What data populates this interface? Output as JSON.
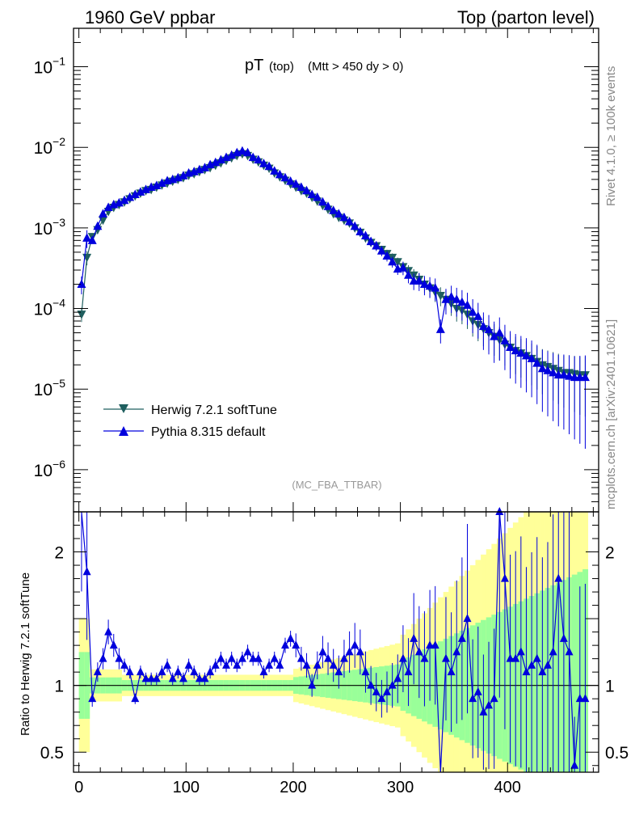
{
  "header": {
    "left_title": "1960 GeV ppbar",
    "right_title": "Top (parton level)"
  },
  "plot": {
    "title_main": "pT",
    "title_sub": "(top)",
    "title_cut": "(Mtt > 450 dy > 0)",
    "watermark": "(MC_FBA_TTBAR)"
  },
  "side": {
    "rivet": "Rivet 4.1.0, ≥ 100k events",
    "mcplots": "mcplots.cern.ch [arXiv:2401.10621]"
  },
  "ratio": {
    "ylabel": "Ratio to Herwig 7.2.1 softTune"
  },
  "colors": {
    "herwig": "#1f5f5f",
    "pythia": "#0000dd",
    "band_outer": "#ffff99",
    "band_inner": "#99ff99"
  },
  "chart_data": {
    "type": "line",
    "x": [
      2.5,
      7.5,
      12.5,
      17.5,
      22.5,
      27.5,
      32.5,
      37.5,
      42.5,
      47.5,
      52.5,
      57.5,
      62.5,
      67.5,
      72.5,
      77.5,
      82.5,
      87.5,
      92.5,
      97.5,
      102.5,
      107.5,
      112.5,
      117.5,
      122.5,
      127.5,
      132.5,
      137.5,
      142.5,
      147.5,
      152.5,
      157.5,
      162.5,
      167.5,
      172.5,
      177.5,
      182.5,
      187.5,
      192.5,
      197.5,
      202.5,
      207.5,
      212.5,
      217.5,
      222.5,
      227.5,
      232.5,
      237.5,
      242.5,
      247.5,
      252.5,
      257.5,
      262.5,
      267.5,
      272.5,
      277.5,
      282.5,
      287.5,
      292.5,
      297.5,
      302.5,
      307.5,
      312.5,
      317.5,
      322.5,
      327.5,
      332.5,
      337.5,
      342.5,
      347.5,
      352.5,
      357.5,
      362.5,
      367.5,
      372.5,
      377.5,
      382.5,
      387.5,
      392.5,
      397.5,
      402.5,
      407.5,
      412.5,
      417.5,
      422.5,
      427.5,
      432.5,
      437.5,
      442.5,
      447.5,
      452.5,
      457.5,
      462.5,
      467.5,
      472.5
    ],
    "series": [
      {
        "name": "Herwig 7.2.1 softTune",
        "values": [
          8.5e-05,
          0.00043,
          0.00078,
          0.00095,
          0.00125,
          0.0016,
          0.0018,
          0.00195,
          0.0021,
          0.0023,
          0.0025,
          0.0027,
          0.0029,
          0.003,
          0.0032,
          0.0034,
          0.0036,
          0.0038,
          0.004,
          0.0042,
          0.0045,
          0.0047,
          0.005,
          0.0053,
          0.0056,
          0.006,
          0.0064,
          0.0069,
          0.0074,
          0.0079,
          0.0083,
          0.0079,
          0.0071,
          0.0066,
          0.006,
          0.0055,
          0.0048,
          0.0043,
          0.0039,
          0.0035,
          0.0032,
          0.0029,
          0.0027,
          0.0024,
          0.00215,
          0.0019,
          0.0017,
          0.0015,
          0.00135,
          0.00125,
          0.00115,
          0.001,
          0.00088,
          0.00075,
          0.00066,
          0.0006,
          0.00054,
          0.00048,
          0.00043,
          0.00038,
          0.00033,
          0.000295,
          0.00026,
          0.00023,
          0.0002,
          0.00018,
          0.00016,
          0.000145,
          0.00013,
          0.000115,
          0.0001,
          9.5e-05,
          8.5e-05,
          7e-05,
          6.3e-05,
          5.6e-05,
          5e-05,
          4.5e-05,
          4.1e-05,
          3.6e-05,
          3.3e-05,
          3e-05,
          2.8e-05,
          2.6e-05,
          2.4e-05,
          2.2e-05,
          2e-05,
          1.9e-05,
          1.8e-05,
          1.7e-05,
          1.6e-05,
          1.6e-05,
          1.55e-05,
          1.5e-05,
          1.5e-05
        ]
      },
      {
        "name": "Pythia 8.315 default",
        "values": [
          0.0002,
          0.00075,
          0.0007,
          0.00105,
          0.0015,
          0.0018,
          0.00195,
          0.00205,
          0.0022,
          0.0024,
          0.0026,
          0.0028,
          0.003,
          0.0032,
          0.00335,
          0.0036,
          0.00385,
          0.004,
          0.0042,
          0.00445,
          0.0048,
          0.005,
          0.0053,
          0.0056,
          0.0061,
          0.0065,
          0.007,
          0.0075,
          0.008,
          0.0086,
          0.009,
          0.0086,
          0.0075,
          0.007,
          0.0063,
          0.0058,
          0.0051,
          0.0046,
          0.0042,
          0.0038,
          0.0035,
          0.0032,
          0.0029,
          0.0026,
          0.0024,
          0.0021,
          0.00185,
          0.00165,
          0.0015,
          0.00135,
          0.0012,
          0.00105,
          0.0009,
          0.0008,
          0.00068,
          0.0006,
          0.00052,
          0.00045,
          0.00038,
          0.00031,
          0.00032,
          0.00026,
          0.00022,
          0.00022,
          0.0002,
          0.00019,
          0.00018,
          5.5e-05,
          0.00013,
          0.00014,
          0.00013,
          0.00012,
          0.00011,
          9e-05,
          8e-05,
          6e-05,
          5.5e-05,
          4.5e-05,
          5e-05,
          4e-05,
          3.3e-05,
          3e-05,
          2.8e-05,
          2.6e-05,
          2.4e-05,
          2.1e-05,
          1.8e-05,
          1.7e-05,
          1.6e-05,
          1.5e-05,
          1.5e-05,
          1.45e-05,
          1.4e-05,
          1.4e-05,
          1.4e-05
        ]
      }
    ],
    "ratio_values": [
      2.35,
      1.85,
      0.9,
      1.1,
      1.2,
      1.4,
      1.3,
      1.2,
      1.15,
      1.1,
      0.9,
      1.1,
      1.05,
      1.05,
      1.05,
      1.1,
      1.15,
      1.05,
      1.1,
      1.05,
      1.15,
      1.1,
      1.05,
      1.05,
      1.1,
      1.15,
      1.2,
      1.15,
      1.2,
      1.15,
      1.2,
      1.25,
      1.2,
      1.2,
      1.1,
      1.15,
      1.2,
      1.15,
      1.3,
      1.35,
      1.3,
      1.2,
      1.15,
      1.0,
      1.15,
      1.25,
      1.2,
      1.15,
      1.1,
      1.2,
      1.25,
      1.3,
      1.25,
      1.1,
      1.0,
      0.95,
      0.9,
      0.95,
      1.0,
      1.05,
      1.2,
      1.1,
      1.35,
      1.25,
      1.2,
      1.3,
      1.3,
      0.3,
      1.2,
      1.1,
      1.25,
      1.35,
      1.5,
      0.9,
      0.95,
      0.8,
      0.85,
      0.9,
      2.3,
      1.8,
      1.2,
      1.2,
      1.25,
      1.1,
      1.15,
      1.2,
      1.1,
      1.15,
      1.25,
      1.8,
      1.35,
      1.25,
      0.4,
      0.9,
      0.9
    ],
    "xlabel": "",
    "ylabel_top": "",
    "ylabel_ratio": "Ratio to Herwig 7.2.1 softTune",
    "xlim": [
      -5,
      485
    ],
    "ylim_top": [
      3e-07,
      0.3
    ],
    "ylim_ratio": [
      0.35,
      2.3
    ],
    "x_ticks": [
      "0",
      "100",
      "200",
      "300",
      "400"
    ],
    "y_ticks_top": [
      "10^-1",
      "10^-2",
      "10^-3",
      "10^-4",
      "10^-5",
      "10^-6"
    ],
    "y_ticks_ratio": [
      "0.5",
      "1",
      "2"
    ],
    "legend": [
      "Herwig 7.2.1 softTune",
      "Pythia 8.315 default"
    ],
    "legend_position": "bottom-left"
  }
}
